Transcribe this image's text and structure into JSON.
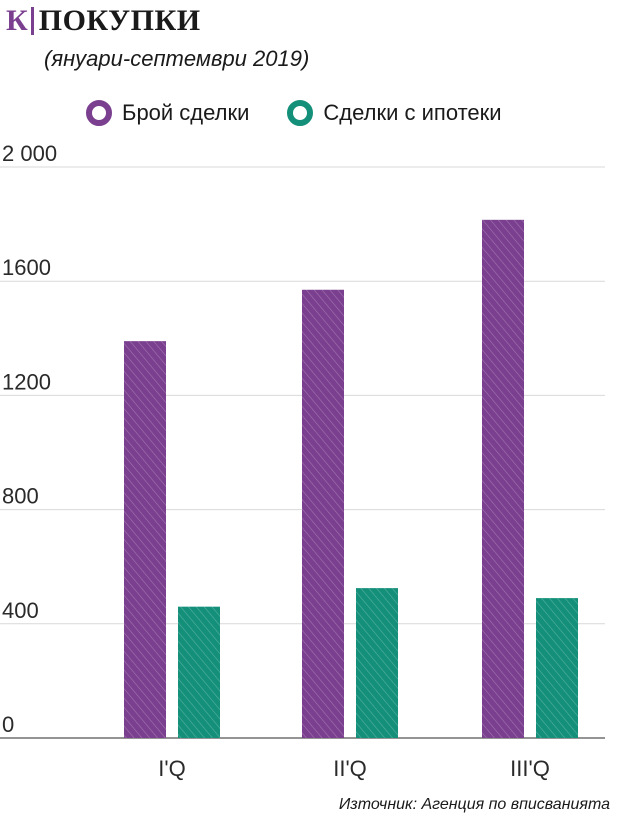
{
  "header": {
    "logo": "К",
    "title": "ПОКУПКИ",
    "subtitle": "(януари-септември 2019)",
    "source": "Източник: Агенция по вписванията"
  },
  "colors": {
    "purple": "#7b3f8f",
    "teal": "#14907a",
    "grid": "#d9d9d9",
    "axis": "#555555"
  },
  "chart_data": {
    "type": "bar",
    "categories": [
      "I'Q",
      "II'Q",
      "III'Q"
    ],
    "series": [
      {
        "name": "Брой сделки",
        "values": [
          1390,
          1570,
          1815
        ]
      },
      {
        "name": "Сделки с ипотеки",
        "values": [
          460,
          525,
          490
        ]
      }
    ],
    "yticks": [
      0,
      400,
      800,
      1200,
      1600,
      2000
    ],
    "ytick_labels": [
      "0",
      "400",
      "800",
      "1200",
      "1600",
      "2 000"
    ],
    "ylim": [
      0,
      2000
    ],
    "grid": true,
    "legend": "top"
  }
}
